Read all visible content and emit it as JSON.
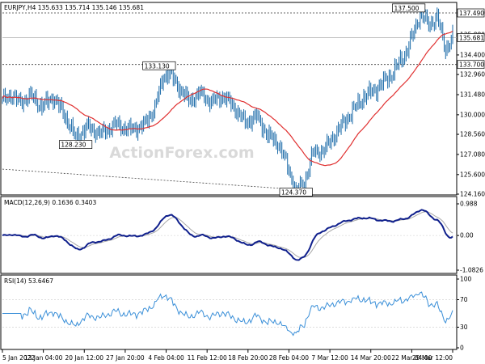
{
  "watermark": "ActionForex.com",
  "main": {
    "legend": "EURJPY,H4  135.633 135.714 135.146 135.681",
    "last_price": "135.681",
    "hlines": [
      137.49,
      133.7
    ],
    "hline_labels": [
      "137.490",
      "133.700"
    ],
    "yticks": [
      124.16,
      125.6,
      127.08,
      128.56,
      130.0,
      131.48,
      132.96,
      134.4,
      135.88,
      137.49
    ],
    "ytick_labels": [
      "124.160",
      "125.600",
      "127.080",
      "128.560",
      "130.000",
      "131.480",
      "132.960",
      "134.400",
      "135.880",
      "137.490"
    ],
    "annotations": [
      {
        "text": "128.230",
        "date_index": 52,
        "price": 128.23
      },
      {
        "text": "133.130",
        "date_index": 118,
        "price": 133.13
      },
      {
        "text": "124.370",
        "date_index": 208,
        "price": 124.37
      },
      {
        "text": "137.500",
        "date_index": 296,
        "price": 137.5
      }
    ]
  },
  "macd": {
    "legend": "MACD(12,26,9) 0.1636 0.3403",
    "yticks": [
      0.988,
      0.0,
      -1.0826
    ],
    "ytick_labels": [
      "0.988",
      "0.00",
      "-1.0826"
    ]
  },
  "rsi": {
    "legend": "RSI(14) 53.6467",
    "yticks": [
      100,
      70,
      30,
      0
    ],
    "ytick_labels": [
      "100",
      "70",
      "30",
      "0"
    ]
  },
  "xaxis": {
    "labels": [
      "5 Jan 2022",
      "13 Jan 04:00",
      "20 Jan 12:00",
      "27 Jan 20:00",
      "4 Feb 04:00",
      "11 Feb 12:00",
      "18 Feb 20:00",
      "28 Feb 04:00",
      "7 Mar 12:00",
      "14 Mar 20:00",
      "22 Mar 04:00",
      "29 Mar 12:00"
    ]
  },
  "colors": {
    "price": "#1a6aa8",
    "ma": "#e03030",
    "macd": "#0f1f8c",
    "signal": "#a8a8a8",
    "rsi": "#3a8fd8",
    "axis": "#000000"
  },
  "chart_data": {
    "type": "line",
    "instrument": "EURJPY",
    "timeframe": "H4",
    "x_range": [
      "5 Jan 2022",
      "29 Mar 12:00"
    ],
    "price_key_points": [
      {
        "label": "5 Jan 2022",
        "close": 131.3
      },
      {
        "label": "13 Jan 04:00",
        "close": 130.8
      },
      {
        "label": "20 Jan 12:00",
        "close": 129.0
      },
      {
        "label": "27 Jan 20:00",
        "close": 128.8
      },
      {
        "label": "4 Feb 04:00",
        "close": 131.8
      },
      {
        "label": "11 Feb 12:00",
        "close": 131.2
      },
      {
        "label": "18 Feb 20:00",
        "close": 130.9
      },
      {
        "label": "28 Feb 04:00",
        "close": 128.2
      },
      {
        "label": "7 Mar 12:00",
        "close": 127.0
      },
      {
        "label": "14 Mar 20:00",
        "close": 130.8
      },
      {
        "label": "22 Mar 04:00",
        "close": 133.8
      },
      {
        "label": "29 Mar 12:00",
        "close": 136.0
      }
    ],
    "swing_points": [
      {
        "label": "low",
        "value": 128.23
      },
      {
        "label": "high",
        "value": 133.13
      },
      {
        "label": "low",
        "value": 124.37
      },
      {
        "label": "high",
        "value": 137.5
      }
    ],
    "ylim_price": [
      124.16,
      137.49
    ],
    "ylim_macd": [
      -1.0826,
      0.988
    ],
    "ylim_rsi": [
      0,
      100
    ],
    "rsi_levels": [
      70,
      30
    ],
    "grid": false
  }
}
